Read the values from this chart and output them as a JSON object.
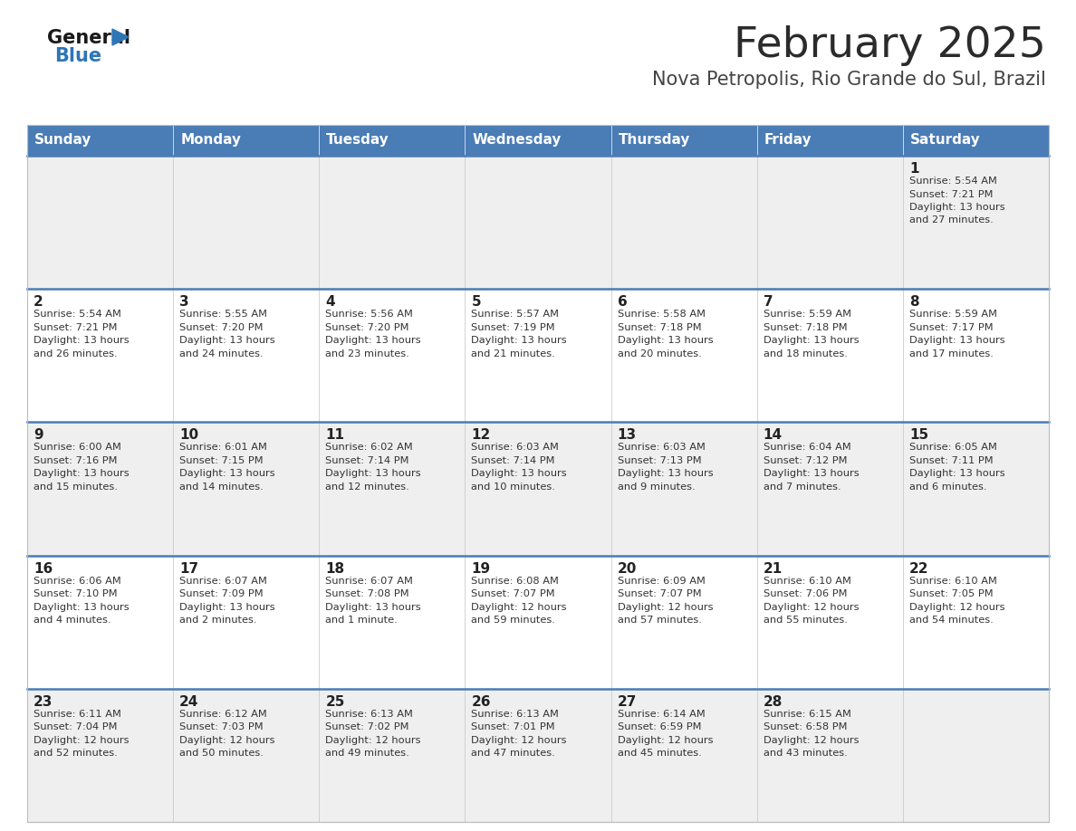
{
  "title": "February 2025",
  "subtitle": "Nova Petropolis, Rio Grande do Sul, Brazil",
  "header_bg": "#4A7CB5",
  "header_text_color": "#FFFFFF",
  "cell_bg_odd": "#EFEFEF",
  "cell_bg_even": "#FFFFFF",
  "day_names": [
    "Sunday",
    "Monday",
    "Tuesday",
    "Wednesday",
    "Thursday",
    "Friday",
    "Saturday"
  ],
  "title_color": "#2B2B2B",
  "subtitle_color": "#444444",
  "day_number_color": "#222222",
  "cell_text_color": "#333333",
  "divider_color": "#4A7CB5",
  "logo_general_color": "#1A1A1A",
  "logo_blue_color": "#2E75B6",
  "calendar": [
    [
      {
        "day": null,
        "info": null
      },
      {
        "day": null,
        "info": null
      },
      {
        "day": null,
        "info": null
      },
      {
        "day": null,
        "info": null
      },
      {
        "day": null,
        "info": null
      },
      {
        "day": null,
        "info": null
      },
      {
        "day": 1,
        "info": "Sunrise: 5:54 AM\nSunset: 7:21 PM\nDaylight: 13 hours\nand 27 minutes."
      }
    ],
    [
      {
        "day": 2,
        "info": "Sunrise: 5:54 AM\nSunset: 7:21 PM\nDaylight: 13 hours\nand 26 minutes."
      },
      {
        "day": 3,
        "info": "Sunrise: 5:55 AM\nSunset: 7:20 PM\nDaylight: 13 hours\nand 24 minutes."
      },
      {
        "day": 4,
        "info": "Sunrise: 5:56 AM\nSunset: 7:20 PM\nDaylight: 13 hours\nand 23 minutes."
      },
      {
        "day": 5,
        "info": "Sunrise: 5:57 AM\nSunset: 7:19 PM\nDaylight: 13 hours\nand 21 minutes."
      },
      {
        "day": 6,
        "info": "Sunrise: 5:58 AM\nSunset: 7:18 PM\nDaylight: 13 hours\nand 20 minutes."
      },
      {
        "day": 7,
        "info": "Sunrise: 5:59 AM\nSunset: 7:18 PM\nDaylight: 13 hours\nand 18 minutes."
      },
      {
        "day": 8,
        "info": "Sunrise: 5:59 AM\nSunset: 7:17 PM\nDaylight: 13 hours\nand 17 minutes."
      }
    ],
    [
      {
        "day": 9,
        "info": "Sunrise: 6:00 AM\nSunset: 7:16 PM\nDaylight: 13 hours\nand 15 minutes."
      },
      {
        "day": 10,
        "info": "Sunrise: 6:01 AM\nSunset: 7:15 PM\nDaylight: 13 hours\nand 14 minutes."
      },
      {
        "day": 11,
        "info": "Sunrise: 6:02 AM\nSunset: 7:14 PM\nDaylight: 13 hours\nand 12 minutes."
      },
      {
        "day": 12,
        "info": "Sunrise: 6:03 AM\nSunset: 7:14 PM\nDaylight: 13 hours\nand 10 minutes."
      },
      {
        "day": 13,
        "info": "Sunrise: 6:03 AM\nSunset: 7:13 PM\nDaylight: 13 hours\nand 9 minutes."
      },
      {
        "day": 14,
        "info": "Sunrise: 6:04 AM\nSunset: 7:12 PM\nDaylight: 13 hours\nand 7 minutes."
      },
      {
        "day": 15,
        "info": "Sunrise: 6:05 AM\nSunset: 7:11 PM\nDaylight: 13 hours\nand 6 minutes."
      }
    ],
    [
      {
        "day": 16,
        "info": "Sunrise: 6:06 AM\nSunset: 7:10 PM\nDaylight: 13 hours\nand 4 minutes."
      },
      {
        "day": 17,
        "info": "Sunrise: 6:07 AM\nSunset: 7:09 PM\nDaylight: 13 hours\nand 2 minutes."
      },
      {
        "day": 18,
        "info": "Sunrise: 6:07 AM\nSunset: 7:08 PM\nDaylight: 13 hours\nand 1 minute."
      },
      {
        "day": 19,
        "info": "Sunrise: 6:08 AM\nSunset: 7:07 PM\nDaylight: 12 hours\nand 59 minutes."
      },
      {
        "day": 20,
        "info": "Sunrise: 6:09 AM\nSunset: 7:07 PM\nDaylight: 12 hours\nand 57 minutes."
      },
      {
        "day": 21,
        "info": "Sunrise: 6:10 AM\nSunset: 7:06 PM\nDaylight: 12 hours\nand 55 minutes."
      },
      {
        "day": 22,
        "info": "Sunrise: 6:10 AM\nSunset: 7:05 PM\nDaylight: 12 hours\nand 54 minutes."
      }
    ],
    [
      {
        "day": 23,
        "info": "Sunrise: 6:11 AM\nSunset: 7:04 PM\nDaylight: 12 hours\nand 52 minutes."
      },
      {
        "day": 24,
        "info": "Sunrise: 6:12 AM\nSunset: 7:03 PM\nDaylight: 12 hours\nand 50 minutes."
      },
      {
        "day": 25,
        "info": "Sunrise: 6:13 AM\nSunset: 7:02 PM\nDaylight: 12 hours\nand 49 minutes."
      },
      {
        "day": 26,
        "info": "Sunrise: 6:13 AM\nSunset: 7:01 PM\nDaylight: 12 hours\nand 47 minutes."
      },
      {
        "day": 27,
        "info": "Sunrise: 6:14 AM\nSunset: 6:59 PM\nDaylight: 12 hours\nand 45 minutes."
      },
      {
        "day": 28,
        "info": "Sunrise: 6:15 AM\nSunset: 6:58 PM\nDaylight: 12 hours\nand 43 minutes."
      },
      {
        "day": null,
        "info": null
      }
    ]
  ]
}
